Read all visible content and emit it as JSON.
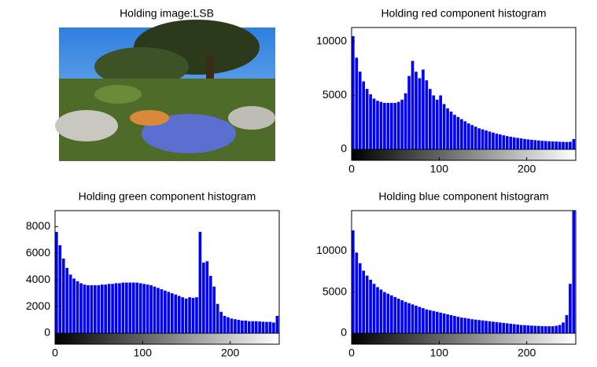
{
  "chart_data": [
    {
      "type": "image",
      "title": "Holding image:LSB"
    },
    {
      "type": "histogram",
      "title": "Holding red component histogram",
      "color": "#0000ff",
      "bins": [
        0,
        4,
        8,
        12,
        16,
        20,
        24,
        28,
        32,
        36,
        40,
        44,
        48,
        52,
        56,
        60,
        64,
        68,
        72,
        76,
        80,
        84,
        88,
        92,
        96,
        100,
        104,
        108,
        112,
        116,
        120,
        124,
        128,
        132,
        136,
        140,
        144,
        148,
        152,
        156,
        160,
        164,
        168,
        172,
        176,
        180,
        184,
        188,
        192,
        196,
        200,
        204,
        208,
        212,
        216,
        220,
        224,
        228,
        232,
        236,
        240,
        244,
        248,
        252,
        256
      ],
      "counts": [
        10500,
        8500,
        7200,
        6300,
        5600,
        5100,
        4700,
        4500,
        4400,
        4300,
        4300,
        4300,
        4300,
        4400,
        4600,
        5200,
        6800,
        8200,
        7200,
        6600,
        7400,
        6400,
        5600,
        5000,
        4600,
        5000,
        4200,
        3800,
        3500,
        3200,
        3000,
        2800,
        2600,
        2400,
        2250,
        2100,
        1950,
        1850,
        1750,
        1650,
        1550,
        1450,
        1380,
        1300,
        1230,
        1170,
        1110,
        1060,
        1010,
        960,
        920,
        880,
        850,
        820,
        790,
        770,
        750,
        730,
        720,
        700,
        690,
        680,
        700,
        950
      ],
      "xlim": [
        0,
        256
      ],
      "xticks": [
        0,
        100,
        200
      ],
      "ylim": [
        0,
        11300
      ],
      "yticks": [
        0,
        5000,
        10000
      ]
    },
    {
      "type": "histogram",
      "title": "Holding green component histogram",
      "color": "#0000ff",
      "bins": [
        0,
        4,
        8,
        12,
        16,
        20,
        24,
        28,
        32,
        36,
        40,
        44,
        48,
        52,
        56,
        60,
        64,
        68,
        72,
        76,
        80,
        84,
        88,
        92,
        96,
        100,
        104,
        108,
        112,
        116,
        120,
        124,
        128,
        132,
        136,
        140,
        144,
        148,
        152,
        156,
        160,
        164,
        168,
        172,
        176,
        180,
        184,
        188,
        192,
        196,
        200,
        204,
        208,
        212,
        216,
        220,
        224,
        228,
        232,
        236,
        240,
        244,
        248,
        252,
        256
      ],
      "counts": [
        7600,
        6600,
        5600,
        4900,
        4400,
        4100,
        3900,
        3750,
        3650,
        3600,
        3600,
        3600,
        3600,
        3650,
        3650,
        3700,
        3700,
        3750,
        3750,
        3800,
        3800,
        3800,
        3800,
        3800,
        3750,
        3700,
        3650,
        3600,
        3500,
        3400,
        3300,
        3200,
        3100,
        3000,
        2900,
        2800,
        2700,
        2600,
        2700,
        2650,
        2700,
        7600,
        5300,
        5400,
        4300,
        3500,
        2200,
        1600,
        1300,
        1200,
        1100,
        1050,
        1000,
        950,
        950,
        900,
        900,
        900,
        880,
        860,
        850,
        850,
        800,
        1300
      ],
      "xlim": [
        0,
        256
      ],
      "xticks": [
        0,
        100,
        200
      ],
      "ylim": [
        0,
        9200
      ],
      "yticks": [
        0,
        2000,
        4000,
        6000,
        8000
      ]
    },
    {
      "type": "histogram",
      "title": "Holding blue component histogram",
      "color": "#0000ff",
      "bins": [
        0,
        4,
        8,
        12,
        16,
        20,
        24,
        28,
        32,
        36,
        40,
        44,
        48,
        52,
        56,
        60,
        64,
        68,
        72,
        76,
        80,
        84,
        88,
        92,
        96,
        100,
        104,
        108,
        112,
        116,
        120,
        124,
        128,
        132,
        136,
        140,
        144,
        148,
        152,
        156,
        160,
        164,
        168,
        172,
        176,
        180,
        184,
        188,
        192,
        196,
        200,
        204,
        208,
        212,
        216,
        220,
        224,
        228,
        232,
        236,
        240,
        244,
        248,
        252,
        256
      ],
      "counts": [
        12500,
        9800,
        8500,
        7600,
        7000,
        6500,
        6000,
        5600,
        5300,
        5000,
        4800,
        4600,
        4400,
        4200,
        4000,
        3800,
        3650,
        3500,
        3350,
        3200,
        3050,
        2900,
        2800,
        2700,
        2600,
        2500,
        2400,
        2300,
        2200,
        2100,
        2000,
        1900,
        1850,
        1780,
        1700,
        1650,
        1600,
        1550,
        1500,
        1450,
        1400,
        1350,
        1300,
        1250,
        1200,
        1150,
        1100,
        1050,
        1000,
        980,
        950,
        920,
        900,
        880,
        860,
        850,
        850,
        850,
        900,
        1000,
        1300,
        2200,
        6000,
        14900
      ],
      "xlim": [
        0,
        256
      ],
      "xticks": [
        0,
        100,
        200
      ],
      "ylim": [
        0,
        14900
      ],
      "yticks": [
        0,
        5000,
        10000
      ]
    }
  ]
}
